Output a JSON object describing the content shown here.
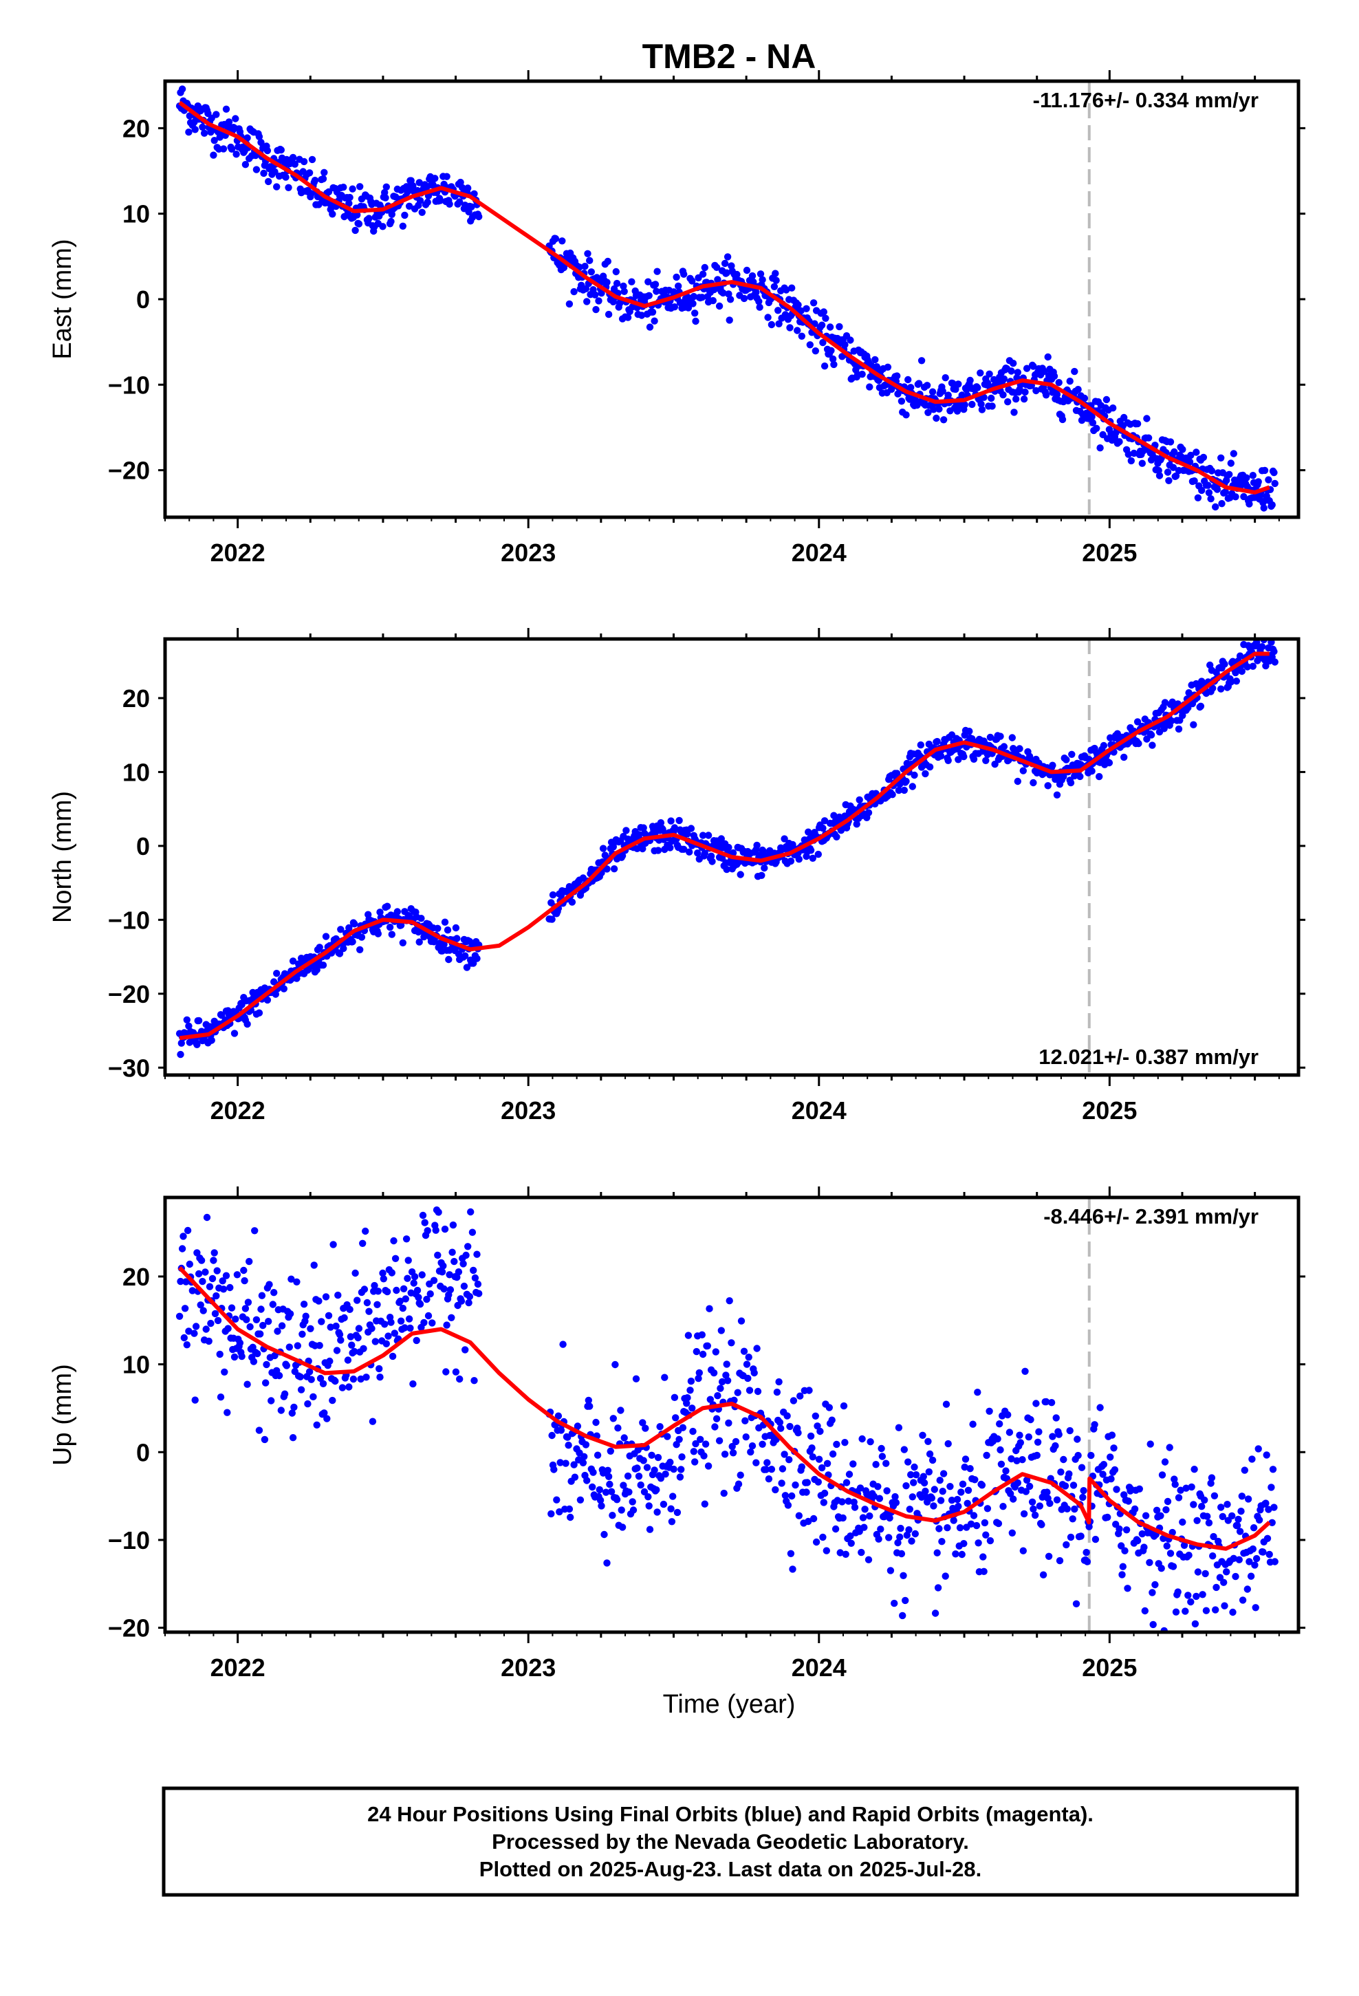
{
  "colors": {
    "final_orbits": "#0000ff",
    "model": "#ff0000",
    "marker_line": "#bbbbbb",
    "frame": "#000000"
  },
  "chart_data": {
    "title": "TMB2 - NA",
    "xlabel": "Time (year)",
    "xlim": [
      2021.75,
      2025.65
    ],
    "x_ticks": [
      2022,
      2023,
      2024,
      2025
    ],
    "x_tick_labels": [
      "2022",
      "2023",
      "2024",
      "2025"
    ],
    "data_gap": [
      2022.83,
      2023.07
    ],
    "marker_line_x": 2024.93,
    "footer": [
      "24 Hour Positions Using Final Orbits (blue) and Rapid Orbits (magenta).",
      "Processed by the Nevada Geodetic Laboratory.",
      "Plotted on 2025-Aug-23. Last data on 2025-Jul-28."
    ],
    "panels": [
      {
        "type": "scatter",
        "ylabel": "East (mm)",
        "ylim": [
          -25.5,
          25.5
        ],
        "y_ticks": [
          -20,
          -10,
          0,
          10,
          20
        ],
        "y_tick_labels": [
          "−20",
          "−10",
          "0",
          "10",
          "20"
        ],
        "rate_text": "-11.176+/- 0.334 mm/yr",
        "rate_position": "top-right",
        "x": [
          2021.8,
          2021.9,
          2022.0,
          2022.1,
          2022.2,
          2022.3,
          2022.4,
          2022.5,
          2022.6,
          2022.7,
          2022.8,
          2023.1,
          2023.2,
          2023.3,
          2023.4,
          2023.5,
          2023.6,
          2023.7,
          2023.8,
          2023.9,
          2024.0,
          2024.1,
          2024.2,
          2024.3,
          2024.4,
          2024.5,
          2024.6,
          2024.7,
          2024.8,
          2024.9,
          2025.0,
          2025.1,
          2025.2,
          2025.3,
          2025.4,
          2025.5,
          2025.55
        ],
        "model": [
          23.0,
          20.5,
          19.0,
          16.5,
          14.5,
          12.0,
          10.3,
          10.5,
          12.0,
          13.0,
          12.0,
          5.0,
          2.5,
          0.3,
          -0.8,
          0.2,
          1.5,
          2.0,
          1.3,
          -1.0,
          -4.0,
          -6.5,
          -8.8,
          -10.8,
          -12.0,
          -11.8,
          -10.5,
          -9.5,
          -10.0,
          -12.0,
          -14.5,
          -16.5,
          -18.5,
          -20.0,
          -22.0,
          -22.6,
          -22.0
        ],
        "scatter": 1.3
      },
      {
        "type": "scatter",
        "ylabel": "North (mm)",
        "ylim": [
          -31,
          28
        ],
        "y_ticks": [
          -30,
          -20,
          -10,
          0,
          10,
          20
        ],
        "y_tick_labels": [
          "−30",
          "−20",
          "−10",
          "0",
          "10",
          "20"
        ],
        "rate_text": "12.021+/- 0.387 mm/yr",
        "rate_position": "bottom-right",
        "x": [
          2021.8,
          2021.9,
          2022.0,
          2022.1,
          2022.2,
          2022.3,
          2022.4,
          2022.5,
          2022.6,
          2022.7,
          2022.8,
          2022.9,
          2023.0,
          2023.1,
          2023.2,
          2023.3,
          2023.4,
          2023.5,
          2023.6,
          2023.7,
          2023.8,
          2023.9,
          2024.0,
          2024.1,
          2024.2,
          2024.3,
          2024.4,
          2024.5,
          2024.6,
          2024.7,
          2024.8,
          2024.9,
          2025.0,
          2025.1,
          2025.2,
          2025.3,
          2025.4,
          2025.5,
          2025.55
        ],
        "model": [
          -26.0,
          -25.5,
          -23.0,
          -20.0,
          -17.0,
          -14.5,
          -11.5,
          -10.0,
          -10.3,
          -12.5,
          -14.0,
          -13.5,
          -11.0,
          -8.0,
          -5.0,
          -1.0,
          1.0,
          1.5,
          0.0,
          -1.5,
          -2.0,
          -1.0,
          1.0,
          3.5,
          6.5,
          10.0,
          13.0,
          14.0,
          13.0,
          11.5,
          10.0,
          10.2,
          13.0,
          15.5,
          17.5,
          20.5,
          23.5,
          26.0,
          26.0
        ],
        "scatter": 1.0
      },
      {
        "type": "scatter",
        "ylabel": "Up (mm)",
        "ylim": [
          -20.5,
          29
        ],
        "y_ticks": [
          -20,
          -10,
          0,
          10,
          20
        ],
        "y_tick_labels": [
          "−20",
          "−10",
          "0",
          "10",
          "20"
        ],
        "rate_text": "-8.446+/- 2.391 mm/yr",
        "rate_position": "top-right",
        "x": [
          2021.8,
          2021.9,
          2022.0,
          2022.1,
          2022.2,
          2022.3,
          2022.4,
          2022.5,
          2022.6,
          2022.7,
          2022.8,
          2022.9,
          2023.0,
          2023.1,
          2023.2,
          2023.3,
          2023.4,
          2023.5,
          2023.6,
          2023.7,
          2023.8,
          2023.9,
          2024.0,
          2024.1,
          2024.2,
          2024.3,
          2024.4,
          2024.5,
          2024.6,
          2024.7,
          2024.8,
          2024.9,
          2024.929,
          2024.931,
          2025.0,
          2025.1,
          2025.2,
          2025.3,
          2025.4,
          2025.5,
          2025.55
        ],
        "model": [
          21.0,
          17.5,
          14.0,
          12.0,
          10.5,
          9.0,
          9.2,
          11.0,
          13.5,
          14.0,
          12.5,
          9.0,
          6.0,
          3.5,
          1.8,
          0.6,
          0.8,
          3.0,
          5.0,
          5.5,
          4.0,
          0.5,
          -2.5,
          -4.5,
          -6.0,
          -7.3,
          -7.8,
          -6.8,
          -4.5,
          -2.5,
          -3.5,
          -6.0,
          -8.0,
          -3.0,
          -5.5,
          -8.0,
          -9.5,
          -10.5,
          -11.0,
          -9.5,
          -8.0
        ],
        "scatter": 4.5
      }
    ]
  }
}
